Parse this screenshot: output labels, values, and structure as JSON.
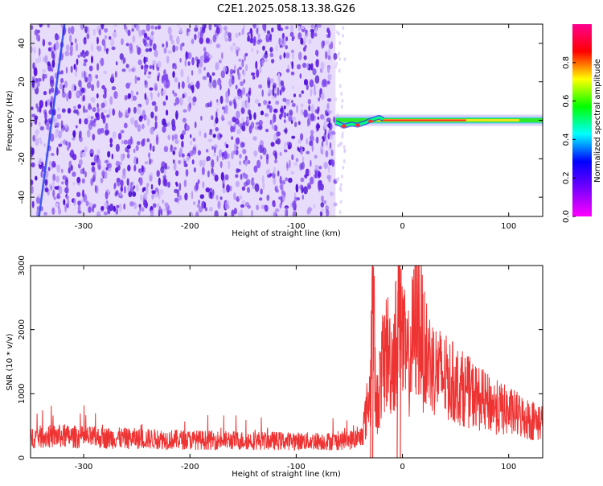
{
  "figure_title": "C2E1.2025.058.13.38.G26",
  "colors": {
    "snr_line": "#ee3333",
    "spectrum_dots": "#6a2ee8",
    "background": "#ffffff",
    "axis": "#000000"
  },
  "chart_data": [
    {
      "type": "heatmap",
      "title": "C2E1.2025.058.13.38.G26",
      "xlabel": "Height of straight line (km)",
      "ylabel": "Frequency (Hz)",
      "xlim": [
        -350,
        132
      ],
      "ylim": [
        -50,
        50
      ],
      "x_ticks": [
        -300,
        -200,
        -100,
        0,
        100
      ],
      "y_ticks": [
        -40,
        -20,
        0,
        20,
        40
      ],
      "noise_region_end_km": -63,
      "signal_frequency_hz": 0,
      "colorbar": {
        "label": "Normalized spectral amplitude",
        "range": [
          0,
          1
        ],
        "ticks": [
          "0.0",
          "0.2",
          "0.4",
          "0.6",
          "0.8"
        ],
        "colormap": [
          "#ff00ff",
          "#7a00ff",
          "#0000ff",
          "#00ffff",
          "#00ff00",
          "#ffff00",
          "#ff0000",
          "#ff0090"
        ]
      },
      "grid": false,
      "legend": "colorbar-right"
    },
    {
      "type": "line",
      "xlabel": "Height of straight line (km)",
      "ylabel": "SNR (10 * v/v)",
      "xlim": [
        -350,
        132
      ],
      "ylim": [
        0,
        3000
      ],
      "x_ticks": [
        -300,
        -200,
        -100,
        0,
        100
      ],
      "y_ticks": [
        0,
        1000,
        2000,
        3000
      ],
      "grid": false,
      "series": [
        {
          "x": [
            -350,
            -325,
            -300,
            -250,
            -200,
            -150,
            -100,
            -60,
            -40,
            -35,
            -30,
            -28,
            -25,
            -20,
            -15,
            -10,
            -5,
            -2,
            0,
            5,
            10,
            15,
            20,
            30,
            40,
            50,
            60,
            70,
            80,
            90,
            100,
            110,
            120,
            132
          ],
          "values": [
            320,
            340,
            320,
            300,
            280,
            270,
            260,
            260,
            300,
            600,
            1100,
            2900,
            700,
            1300,
            1700,
            1500,
            1900,
            2900,
            1800,
            1400,
            1900,
            2200,
            1700,
            1400,
            1250,
            1150,
            1050,
            950,
            850,
            780,
            720,
            660,
            600,
            550
          ]
        }
      ]
    }
  ]
}
